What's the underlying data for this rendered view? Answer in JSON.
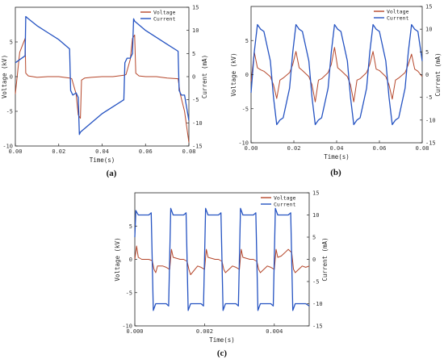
{
  "colors": {
    "voltage": "#b5462a",
    "current": "#2553c2",
    "axis": "#222222"
  },
  "chart_data": [
    {
      "type": "line",
      "panel_label": "(a)",
      "xlabel": "Time(s)",
      "ylabel_left": "Voltage (kV)",
      "ylabel_right": "Current (mA)",
      "xlim": [
        0.0,
        0.08
      ],
      "ylim_left": [
        -10,
        10
      ],
      "ylim_right": [
        -15,
        15
      ],
      "xticks": [
        "0.00",
        "0.02",
        "0.04",
        "0.06",
        "0.08"
      ],
      "yticks_left": [
        "-10",
        "-5",
        "0",
        "5"
      ],
      "yticks_right": [
        "-15",
        "-10",
        "-5",
        "0",
        "5",
        "10",
        "15"
      ],
      "series": [
        {
          "name": "Voltage",
          "axis": "left",
          "color": "#b5462a",
          "x": [
            0.0,
            0.002,
            0.0045,
            0.0048,
            0.006,
            0.01,
            0.015,
            0.02,
            0.025,
            0.026,
            0.028,
            0.029,
            0.03,
            0.0305,
            0.032,
            0.035,
            0.04,
            0.045,
            0.05,
            0.051,
            0.053,
            0.054,
            0.055,
            0.0555,
            0.057,
            0.06,
            0.065,
            0.07,
            0.075,
            0.076,
            0.078,
            0.08
          ],
          "y": [
            -2.5,
            3.5,
            5.5,
            0.5,
            0.1,
            -0.1,
            0.0,
            0.0,
            -0.2,
            -0.3,
            -2.5,
            -5.5,
            -6.0,
            -0.5,
            -0.2,
            -0.1,
            0.0,
            0.0,
            0.2,
            0.3,
            2.5,
            5.5,
            6.0,
            0.5,
            0.1,
            0.0,
            0.0,
            -0.2,
            -0.3,
            -2.5,
            -5.0,
            -9.5
          ]
        },
        {
          "name": "Current",
          "axis": "right",
          "color": "#2553c2",
          "x": [
            0.0,
            0.0045,
            0.0048,
            0.006,
            0.01,
            0.015,
            0.02,
            0.025,
            0.0255,
            0.0265,
            0.028,
            0.029,
            0.0295,
            0.03,
            0.035,
            0.04,
            0.045,
            0.05,
            0.0505,
            0.0515,
            0.053,
            0.054,
            0.0545,
            0.055,
            0.06,
            0.065,
            0.07,
            0.075,
            0.0755,
            0.0765,
            0.078,
            0.08
          ],
          "y": [
            3.0,
            4.5,
            13.0,
            12.5,
            11.0,
            9.5,
            8.0,
            6.0,
            -3.0,
            -4.0,
            -3.5,
            -4.5,
            -12.5,
            -12.0,
            -10.0,
            -8.0,
            -6.5,
            -5.0,
            3.0,
            4.0,
            4.0,
            5.0,
            12.5,
            12.0,
            10.0,
            8.5,
            7.0,
            5.5,
            -3.0,
            -4.0,
            -4.0,
            -9.5
          ]
        }
      ]
    },
    {
      "type": "line",
      "panel_label": "(b)",
      "xlabel": "Time(s)",
      "ylabel_left": "Voltage (kV)",
      "ylabel_right": "Current (mA)",
      "xlim": [
        0.0,
        0.08
      ],
      "ylim_left": [
        -10,
        10
      ],
      "ylim_right": [
        -15,
        15
      ],
      "xticks": [
        "0.00",
        "0.02",
        "0.04",
        "0.06",
        "0.08"
      ],
      "yticks_left": [
        "-10",
        "-5",
        "0",
        "5"
      ],
      "yticks_right": [
        "-15",
        "-10",
        "-5",
        "0",
        "5",
        "10",
        "15"
      ],
      "series": [
        {
          "name": "Voltage",
          "axis": "left",
          "color": "#b5462a",
          "x": [
            0.0,
            0.0015,
            0.003,
            0.0045,
            0.006,
            0.009,
            0.0105,
            0.012,
            0.0135,
            0.015,
            0.018,
            0.0195,
            0.021,
            0.0225,
            0.024,
            0.027,
            0.0285,
            0.03,
            0.0315,
            0.033,
            0.036,
            0.0375,
            0.039,
            0.0405,
            0.042,
            0.045,
            0.0465,
            0.048,
            0.0495,
            0.051,
            0.054,
            0.0555,
            0.057,
            0.0585,
            0.06,
            0.063,
            0.0645,
            0.066,
            0.0675,
            0.069,
            0.072,
            0.0735,
            0.075,
            0.0765,
            0.078,
            0.08
          ],
          "y": [
            -1.0,
            3.3,
            1.0,
            0.7,
            0.5,
            -0.3,
            -1.5,
            -3.5,
            -0.8,
            -0.5,
            0.3,
            1.5,
            3.4,
            1.0,
            0.6,
            -0.3,
            -1.5,
            -4.0,
            -0.8,
            -0.6,
            0.3,
            1.5,
            4.0,
            1.0,
            0.6,
            -0.3,
            -1.5,
            -4.0,
            -0.8,
            -0.6,
            0.3,
            1.5,
            3.4,
            0.8,
            0.6,
            -0.3,
            -1.5,
            -3.6,
            -0.8,
            -0.5,
            0.3,
            1.5,
            3.0,
            0.8,
            0.5,
            -0.3
          ]
        },
        {
          "name": "Current",
          "axis": "right",
          "color": "#2553c2",
          "x": [
            0.0,
            0.0015,
            0.003,
            0.0045,
            0.006,
            0.009,
            0.0105,
            0.012,
            0.0135,
            0.015,
            0.018,
            0.0195,
            0.021,
            0.0225,
            0.024,
            0.027,
            0.0285,
            0.03,
            0.0315,
            0.033,
            0.036,
            0.0375,
            0.039,
            0.0405,
            0.042,
            0.045,
            0.0465,
            0.048,
            0.0495,
            0.051,
            0.054,
            0.0555,
            0.057,
            0.0585,
            0.06,
            0.063,
            0.0645,
            0.066,
            0.0675,
            0.069,
            0.072,
            0.0735,
            0.075,
            0.0765,
            0.078,
            0.08
          ],
          "y": [
            -4.0,
            5.0,
            11.0,
            10.0,
            9.5,
            3.0,
            -5.0,
            -11.0,
            -10.0,
            -9.5,
            -3.0,
            5.0,
            11.0,
            10.0,
            9.5,
            3.0,
            -5.0,
            -11.0,
            -10.0,
            -9.5,
            -3.0,
            5.0,
            11.0,
            10.0,
            9.5,
            3.0,
            -5.0,
            -11.0,
            -10.0,
            -9.5,
            -3.0,
            5.0,
            11.0,
            10.0,
            9.5,
            3.0,
            -5.0,
            -11.0,
            -10.0,
            -9.5,
            -3.0,
            5.0,
            11.0,
            10.0,
            9.5,
            3.0
          ]
        }
      ]
    },
    {
      "type": "line",
      "panel_label": "(c)",
      "xlabel": "Time(s)",
      "ylabel_left": "Voltage (kV)",
      "ylabel_right": "Current (mA)",
      "xlim": [
        0.0,
        0.005
      ],
      "ylim_left": [
        -10,
        10
      ],
      "ylim_right": [
        -15,
        15
      ],
      "xticks": [
        "0.000",
        "0.002",
        "0.004"
      ],
      "yticks_left": [
        "-10",
        "-5",
        "0",
        "5"
      ],
      "yticks_right": [
        "-15",
        "-10",
        "-5",
        "0",
        "5",
        "10",
        "15"
      ],
      "series": [
        {
          "name": "Voltage",
          "axis": "left",
          "color": "#b5462a",
          "x": [
            0.0,
            5e-05,
            0.0001,
            0.0002,
            0.0004,
            0.0005,
            0.00055,
            0.0006,
            0.00065,
            0.0008,
            0.0009,
            0.001,
            0.00105,
            0.0011,
            0.0013,
            0.0014,
            0.0015,
            0.00155,
            0.0016,
            0.0018,
            0.0019,
            0.002,
            0.00205,
            0.0021,
            0.0023,
            0.0024,
            0.0025,
            0.00255,
            0.0026,
            0.0028,
            0.0029,
            0.003,
            0.00305,
            0.0031,
            0.0033,
            0.0034,
            0.0035,
            0.00355,
            0.0036,
            0.0038,
            0.0039,
            0.004,
            0.00405,
            0.0041,
            0.0042,
            0.0043,
            0.0044,
            0.0045,
            0.00455,
            0.0046,
            0.0048,
            0.0049,
            0.005
          ],
          "y": [
            0.0,
            2.0,
            0.3,
            0.0,
            0.0,
            -0.2,
            -1.5,
            -2.0,
            -1.0,
            -1.0,
            -1.2,
            -1.5,
            1.5,
            0.3,
            0.0,
            0.0,
            -0.3,
            -1.5,
            -2.3,
            -1.0,
            -1.2,
            -1.5,
            1.5,
            0.3,
            0.0,
            0.0,
            -0.3,
            -1.5,
            -2.0,
            -1.0,
            -1.2,
            -1.5,
            1.5,
            0.3,
            0.0,
            0.0,
            -0.3,
            -1.5,
            -2.0,
            -1.0,
            -1.2,
            -1.5,
            1.5,
            0.3,
            0.5,
            1.0,
            1.5,
            1.0,
            -1.5,
            -2.0,
            -1.0,
            -1.2,
            -1.0
          ]
        },
        {
          "name": "Current",
          "axis": "right",
          "color": "#2553c2",
          "x": [
            0.0,
            3e-05,
            0.0001,
            0.0004,
            0.00047,
            0.00053,
            0.0006,
            0.0009,
            0.00097,
            0.00103,
            0.0011,
            0.0014,
            0.00147,
            0.00153,
            0.0016,
            0.0019,
            0.00197,
            0.00203,
            0.0021,
            0.0024,
            0.00247,
            0.00253,
            0.0026,
            0.0029,
            0.00297,
            0.00303,
            0.0031,
            0.0034,
            0.00347,
            0.00353,
            0.0036,
            0.0039,
            0.00397,
            0.00403,
            0.0041,
            0.0044,
            0.00447,
            0.00453,
            0.0046,
            0.0049,
            0.005
          ],
          "y": [
            5.0,
            11.0,
            10.0,
            10.0,
            10.5,
            -11.5,
            -10.0,
            -10.0,
            -10.5,
            11.5,
            10.0,
            10.0,
            10.5,
            -11.5,
            -10.0,
            -10.0,
            -10.5,
            11.5,
            10.0,
            10.0,
            10.5,
            -11.5,
            -10.0,
            -10.0,
            -10.5,
            11.5,
            10.0,
            10.0,
            10.5,
            -11.5,
            -10.0,
            -10.0,
            -10.5,
            11.5,
            10.0,
            10.0,
            10.5,
            -11.5,
            -10.0,
            -10.0,
            -10.5
          ]
        }
      ]
    }
  ]
}
